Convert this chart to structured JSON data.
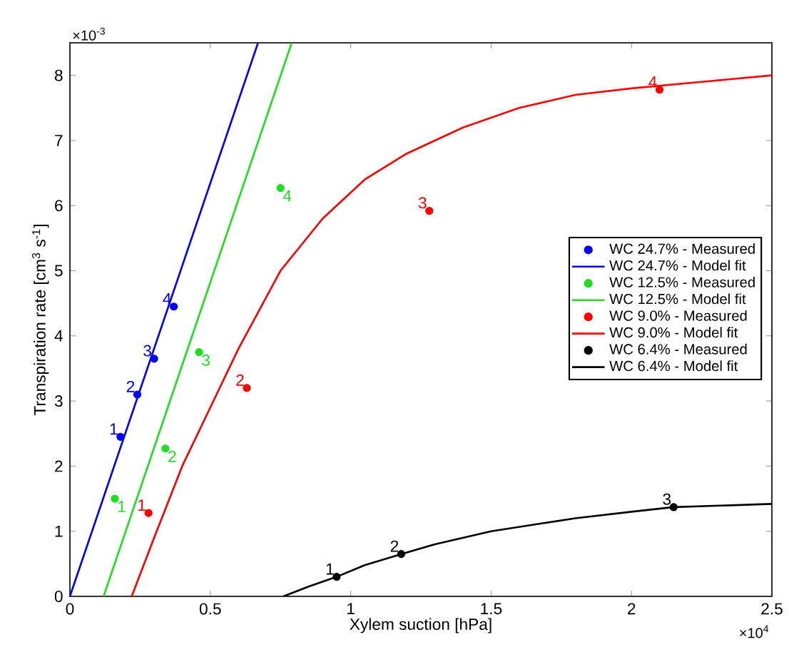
{
  "chart_data": {
    "type": "scatter",
    "xlabel": "Xylem suction [hPa]",
    "ylabel": "Transpiration rate [cm$^{3}$ s$^{-1}$]",
    "xlim": [
      0,
      2.5
    ],
    "ylim": [
      0,
      8.5
    ],
    "xticks": [
      0,
      0.5,
      1,
      1.5,
      2,
      2.5
    ],
    "yticks": [
      0,
      1,
      2,
      3,
      4,
      5,
      6,
      7,
      8
    ],
    "legend": "right",
    "series": [
      {
        "name": "WC 24.7% - Measured",
        "marker": "circle",
        "color": "#0000ff",
        "x": [
          0.18,
          0.24,
          0.3,
          0.37
        ],
        "values": [
          2.45,
          3.1,
          3.65,
          4.45
        ]
      },
      {
        "name": "WC 24.7% - Model fit",
        "type": "line",
        "marker": "none",
        "color": "#0000ff",
        "x": [
          0,
          0.67
        ],
        "values": [
          0,
          8.5
        ]
      },
      {
        "name": "WC 12.5% - Measured",
        "marker": "circle",
        "color": "#1fe01f",
        "x": [
          0.16,
          0.34,
          0.46,
          0.75
        ],
        "values": [
          1.5,
          2.27,
          3.75,
          6.27
        ]
      },
      {
        "name": "WC 12.5% - Model fit",
        "type": "line",
        "marker": "none",
        "color": "#1fe01f",
        "x": [
          0.12,
          0.79
        ],
        "values": [
          0,
          8.5
        ]
      },
      {
        "name": "WC 9.0% - Measured",
        "marker": "circle",
        "color": "#ff0000",
        "x": [
          0.28,
          0.63,
          1.28,
          2.1
        ],
        "values": [
          1.28,
          3.2,
          5.92,
          7.78
        ]
      },
      {
        "name": "WC 9.0% - Model fit",
        "type": "line",
        "marker": "none",
        "color": "#ff0000",
        "x": [
          0.22,
          0.3,
          0.4,
          0.5,
          0.6,
          0.75,
          0.9,
          1.05,
          1.2,
          1.4,
          1.6,
          1.8,
          2.0,
          2.25,
          2.5
        ],
        "values": [
          0,
          0.9,
          2.0,
          2.9,
          3.8,
          5.0,
          5.8,
          6.4,
          6.8,
          7.2,
          7.5,
          7.7,
          7.8,
          7.9,
          8.0
        ]
      },
      {
        "name": "WC 6.4% -  Measured",
        "marker": "circle",
        "color": "#000000",
        "x": [
          0.95,
          1.18,
          2.15
        ],
        "values": [
          0.3,
          0.65,
          1.37
        ]
      },
      {
        "name": "WC 6.4% - Model fit",
        "type": "line",
        "marker": "none",
        "color": "#000000",
        "x": [
          0.76,
          0.85,
          0.95,
          1.05,
          1.18,
          1.3,
          1.5,
          1.8,
          2.0,
          2.15,
          2.5
        ],
        "values": [
          0,
          0.15,
          0.3,
          0.48,
          0.65,
          0.8,
          1.0,
          1.2,
          1.3,
          1.37,
          1.42
        ]
      }
    ],
    "annotations": [
      "×10$^{-3}$",
      "×10$^{4}$",
      {
        "text": "1",
        "x": 0.18,
        "y": 2.45
      },
      {
        "text": "2",
        "x": 0.24,
        "y": 3.1
      },
      {
        "text": "3",
        "x": 0.3,
        "y": 3.65
      },
      {
        "text": "4",
        "x": 0.37,
        "y": 4.45
      },
      {
        "text": "1",
        "x": 0.16,
        "y": 1.5
      },
      {
        "text": "2",
        "x": 0.34,
        "y": 2.27
      },
      {
        "text": "3",
        "x": 0.46,
        "y": 3.75
      },
      {
        "text": "4",
        "x": 0.75,
        "y": 6.27
      },
      {
        "text": "1",
        "x": 0.28,
        "y": 1.28
      },
      {
        "text": "2",
        "x": 0.63,
        "y": 3.2
      },
      {
        "text": "3",
        "x": 1.28,
        "y": 5.92
      },
      {
        "text": "4",
        "x": 2.1,
        "y": 7.78
      },
      {
        "text": "1",
        "x": 0.95,
        "y": 0.3
      },
      {
        "text": "2",
        "x": 1.18,
        "y": 0.65
      },
      {
        "text": "3",
        "x": 2.15,
        "y": 1.37
      }
    ]
  }
}
